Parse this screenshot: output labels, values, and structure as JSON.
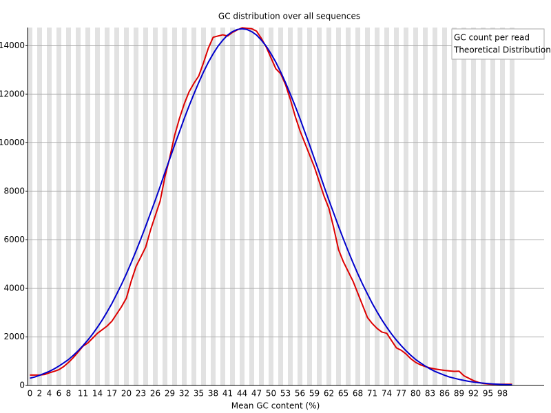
{
  "chart_data": {
    "type": "line",
    "title": "GC distribution over all sequences",
    "x_label": "Mean GC content (%)",
    "categories": [
      0,
      null,
      2,
      null,
      4,
      null,
      6,
      null,
      8,
      null,
      null,
      11,
      null,
      null,
      14,
      null,
      null,
      17,
      null,
      null,
      20,
      null,
      null,
      23,
      null,
      null,
      26,
      null,
      null,
      29,
      null,
      null,
      32,
      null,
      null,
      35,
      null,
      null,
      38,
      null,
      null,
      41,
      null,
      null,
      44,
      null,
      null,
      47,
      null,
      null,
      50,
      null,
      null,
      53,
      null,
      null,
      56,
      null,
      null,
      59,
      null,
      null,
      62,
      null,
      null,
      65,
      null,
      null,
      68,
      null,
      null,
      71,
      null,
      null,
      74,
      null,
      null,
      77,
      null,
      null,
      80,
      null,
      null,
      83,
      null,
      null,
      86,
      null,
      null,
      89,
      null,
      null,
      92,
      null,
      null,
      95,
      null,
      null,
      98,
      null,
      null
    ],
    "series": [
      {
        "name": "GC count per read",
        "color": "#dd0000",
        "values": [
          430,
          430,
          430,
          450,
          520,
          580,
          650,
          780,
          950,
          1150,
          1380,
          1620,
          1750,
          1950,
          2150,
          2300,
          2450,
          2650,
          2950,
          3250,
          3600,
          4300,
          4900,
          5300,
          5700,
          6400,
          7000,
          7600,
          8600,
          9400,
          10300,
          11000,
          11600,
          12100,
          12450,
          12750,
          13300,
          13900,
          14350,
          14400,
          14450,
          14400,
          14550,
          14650,
          14740,
          14720,
          14700,
          14600,
          14300,
          13950,
          13500,
          13050,
          12850,
          12400,
          11800,
          11100,
          10500,
          10000,
          9500,
          9000,
          8400,
          7800,
          7300,
          6500,
          5600,
          5100,
          4700,
          4300,
          3800,
          3300,
          2800,
          2550,
          2350,
          2200,
          2150,
          1850,
          1550,
          1450,
          1300,
          1100,
          950,
          850,
          780,
          720,
          680,
          650,
          620,
          600,
          580,
          590,
          400,
          300,
          200,
          130,
          80,
          60,
          50,
          50,
          50,
          50,
          50
        ]
      },
      {
        "name": "Theoretical Distribution",
        "color": "#0000cc",
        "values": [
          300,
          350,
          420,
          500,
          580,
          680,
          800,
          930,
          1070,
          1240,
          1430,
          1640,
          1870,
          2120,
          2400,
          2700,
          3030,
          3380,
          3770,
          4170,
          4600,
          5060,
          5540,
          6040,
          6560,
          7100,
          7640,
          8200,
          8780,
          9340,
          9910,
          10450,
          11000,
          11520,
          12010,
          12480,
          12920,
          13320,
          13670,
          13980,
          14230,
          14440,
          14580,
          14670,
          14700,
          14670,
          14580,
          14440,
          14230,
          13980,
          13670,
          13320,
          12920,
          12480,
          12010,
          11520,
          11000,
          10450,
          9910,
          9340,
          8780,
          8200,
          7640,
          7100,
          6560,
          6040,
          5540,
          5060,
          4600,
          4170,
          3770,
          3380,
          3030,
          2700,
          2400,
          2120,
          1870,
          1640,
          1430,
          1240,
          1070,
          930,
          800,
          680,
          580,
          500,
          420,
          350,
          300,
          250,
          210,
          170,
          140,
          115,
          95,
          78,
          62,
          50,
          40,
          32,
          25
        ]
      }
    ],
    "ylim": [
      0,
      14750
    ],
    "yticks": [
      0,
      2000,
      4000,
      6000,
      8000,
      10000,
      12000,
      14000
    ],
    "grid": true,
    "legend": "top-right"
  }
}
